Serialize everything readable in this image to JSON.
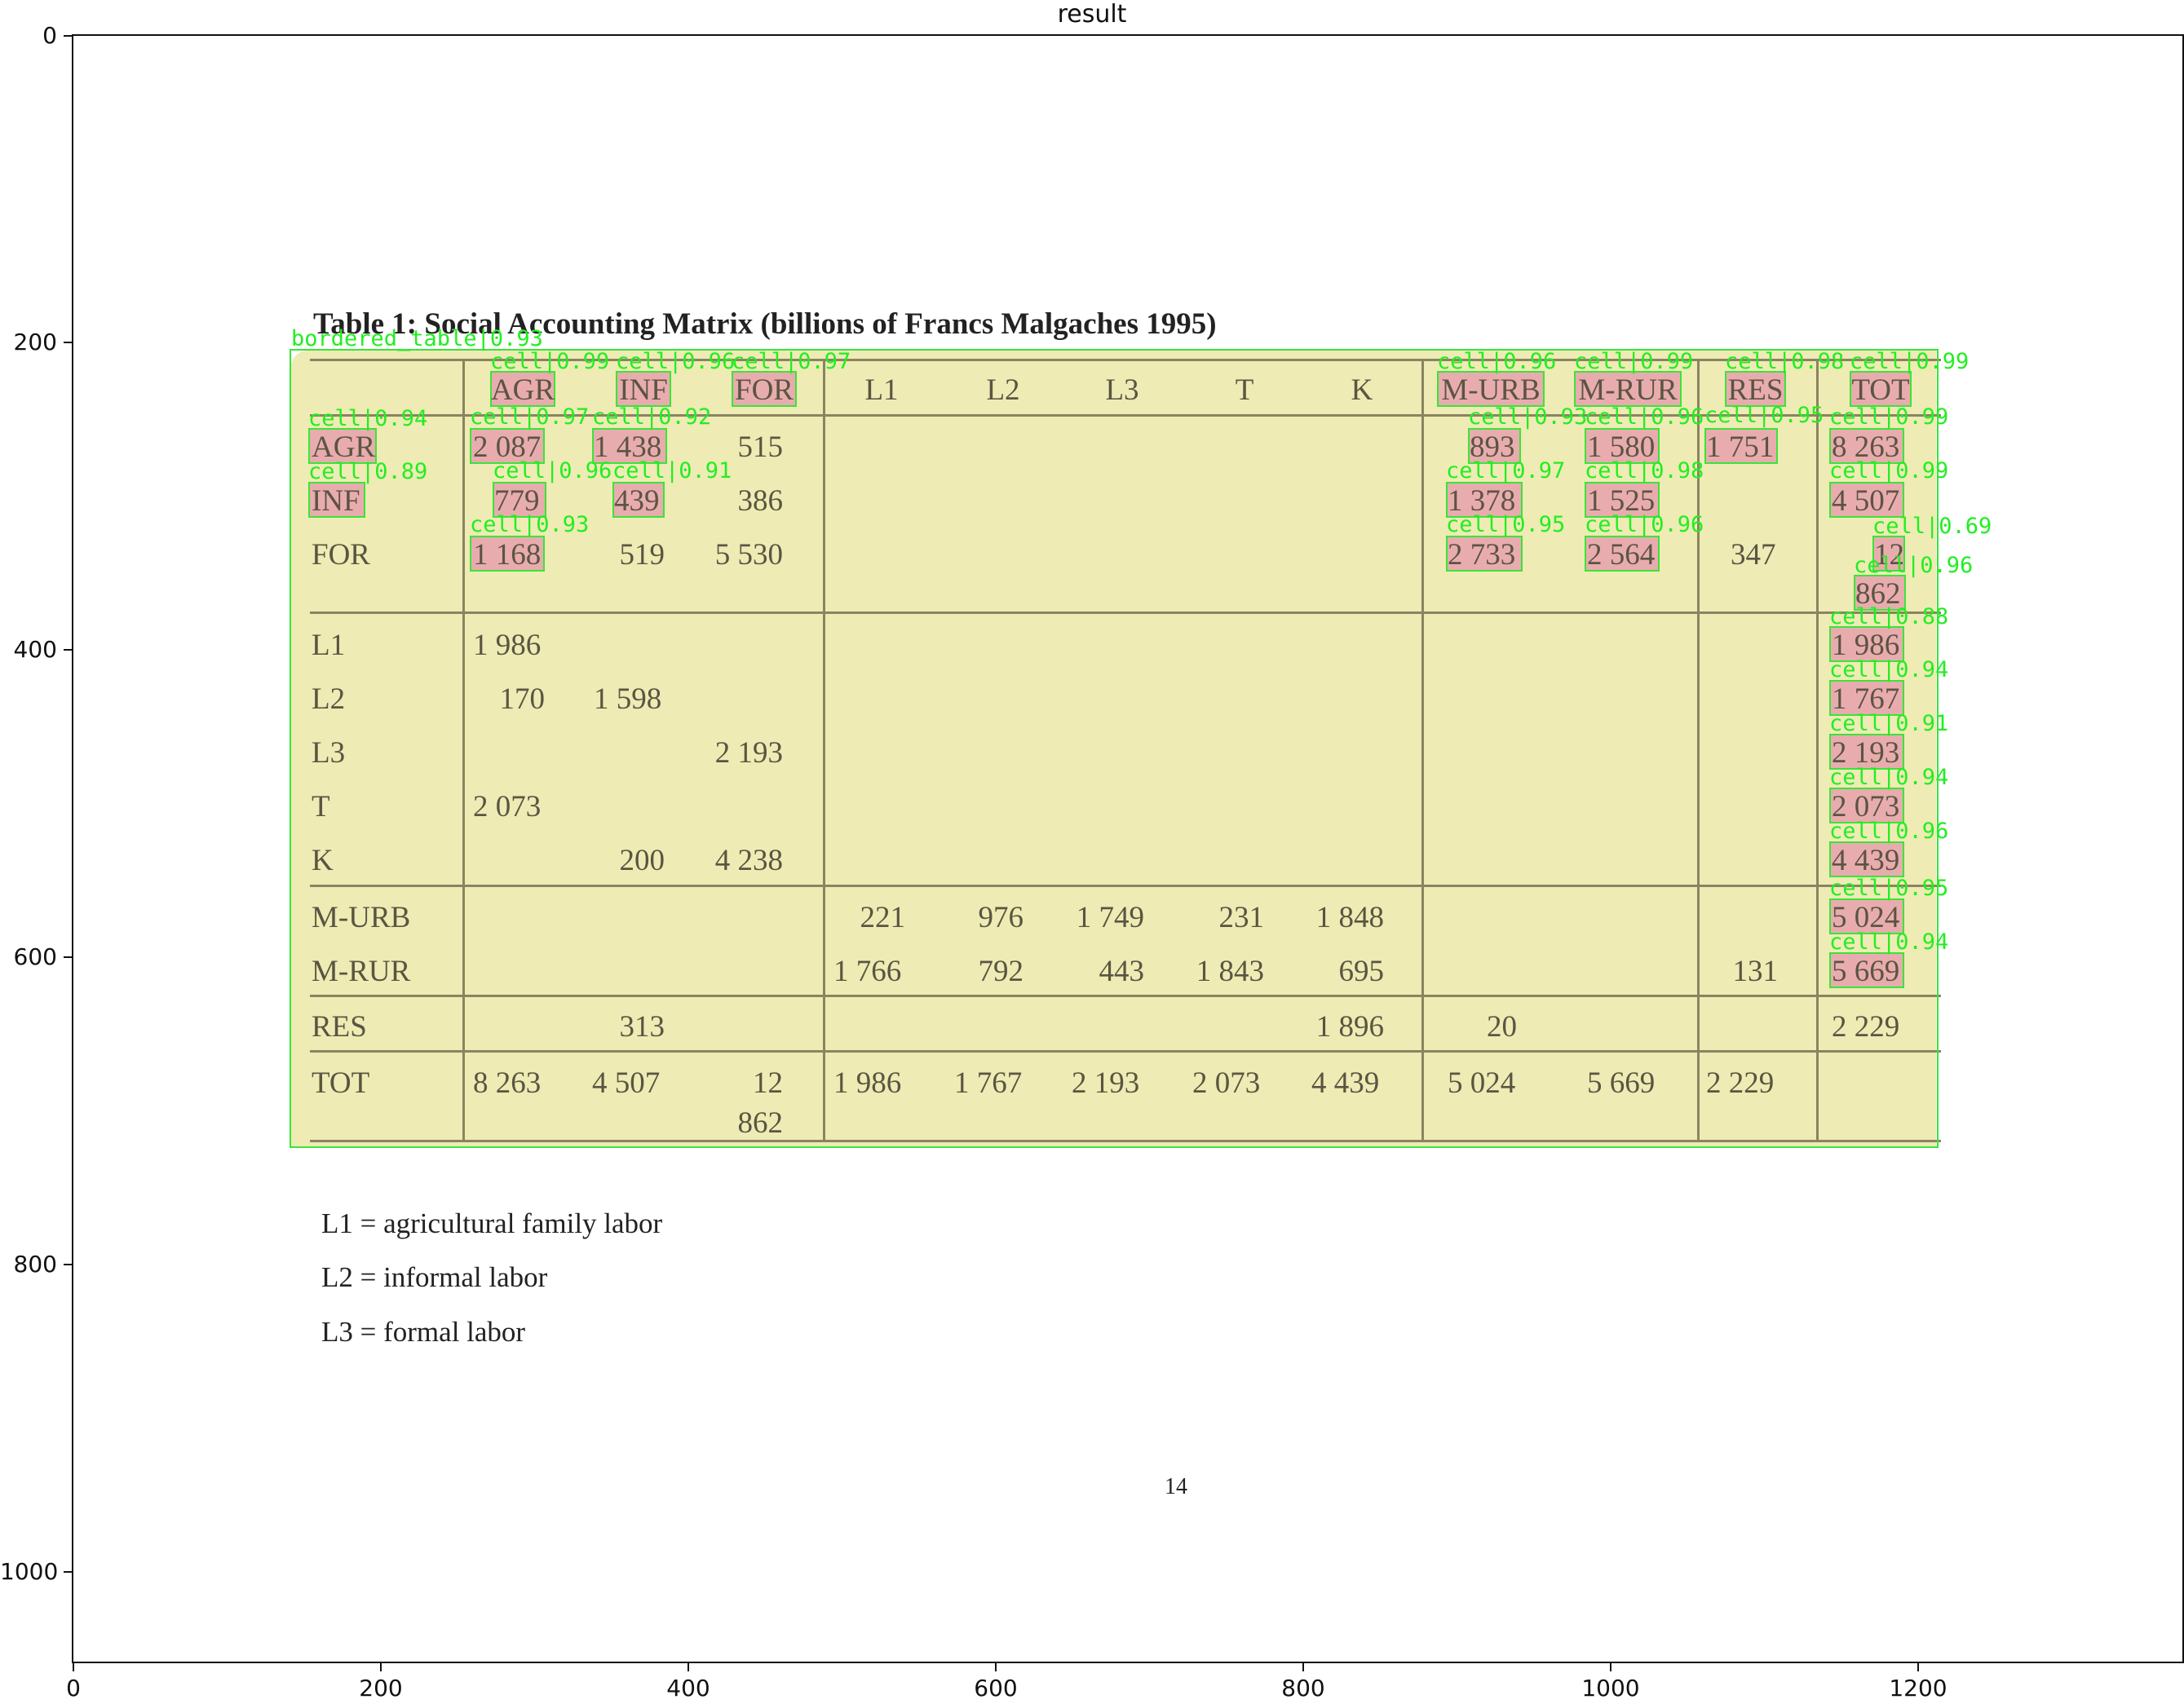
{
  "figure": {
    "title": "result",
    "y_ticks": [
      "0",
      "200",
      "400",
      "600",
      "800",
      "1000"
    ],
    "x_ticks": [
      "0",
      "200",
      "400",
      "600",
      "800",
      "1000",
      "1200"
    ]
  },
  "document": {
    "title": "Table 1: Social Accounting Matrix (billions of Francs Malgaches 1995)",
    "columns": [
      "AGR",
      "INF",
      "FOR",
      "L1",
      "L2",
      "L3",
      "T",
      "K",
      "M-URB",
      "M-RUR",
      "RES",
      "TOT"
    ],
    "rows": [
      {
        "label": "AGR",
        "cells": {
          "AGR": "2 087",
          "INF": "1 438",
          "FOR": "515",
          "M-URB": "893",
          "M-RUR": "1 580",
          "RES": "1 751",
          "TOT": "8 263"
        }
      },
      {
        "label": "INF",
        "cells": {
          "AGR": "779",
          "INF": "439",
          "FOR": "386",
          "M-URB": "1 378",
          "M-RUR": "1 525",
          "TOT": "4 507"
        }
      },
      {
        "label": "FOR",
        "cells": {
          "AGR": "1 168",
          "INF": "519",
          "FOR": "5 530",
          "M-URB": "2 733",
          "M-RUR": "2 564",
          "RES": "347",
          "TOT_a": "12",
          "TOT_b": "862"
        }
      },
      {
        "label": "L1",
        "cells": {
          "AGR": "1 986",
          "TOT": "1 986"
        }
      },
      {
        "label": "L2",
        "cells": {
          "AGR": "170",
          "INF": "1 598",
          "TOT": "1 767"
        }
      },
      {
        "label": "L3",
        "cells": {
          "FOR": "2 193",
          "TOT": "2 193"
        }
      },
      {
        "label": "T",
        "cells": {
          "AGR": "2 073",
          "TOT": "2 073"
        }
      },
      {
        "label": "K",
        "cells": {
          "INF": "200",
          "FOR": "4 238",
          "TOT": "4 439"
        }
      },
      {
        "label": "M-URB",
        "cells": {
          "L1": "221",
          "L2": "976",
          "L3": "1 749",
          "T": "231",
          "K": "1 848",
          "TOT": "5 024"
        }
      },
      {
        "label": "M-RUR",
        "cells": {
          "L1": "1 766",
          "L2": "792",
          "L3": "443",
          "T": "1 843",
          "K": "695",
          "RES": "131",
          "TOT": "5 669"
        }
      },
      {
        "label": "RES",
        "cells": {
          "INF": "313",
          "K": "1 896",
          "M-URB": "20",
          "TOT": "2 229"
        }
      },
      {
        "label": "TOT",
        "cells": {
          "AGR": "8 263",
          "INF": "4 507",
          "FOR_a": "12",
          "FOR_b": "862",
          "L1": "1 986",
          "L2": "1 767",
          "L3": "2 193",
          "T": "2 073",
          "K": "4 439",
          "M-URB": "5 024",
          "M-RUR": "5 669",
          "RES": "2 229"
        }
      }
    ],
    "legend": [
      "L1 = agricultural family labor",
      "L2 = informal labor",
      "L3 = formal labor"
    ],
    "page_number": "14"
  },
  "detections": {
    "table_label": "bordered_table|0.93",
    "cells": [
      {
        "id": "h-agr",
        "label": "cell|0.99"
      },
      {
        "id": "h-inf",
        "label": "cell|0.96"
      },
      {
        "id": "h-for",
        "label": "cell|0.97"
      },
      {
        "id": "h-murb",
        "label": "cell|0.96"
      },
      {
        "id": "h-mrur",
        "label": "cell|0.99"
      },
      {
        "id": "h-res",
        "label": "cell|0.98"
      },
      {
        "id": "h-tot",
        "label": "cell|0.99"
      },
      {
        "id": "r-agr",
        "label": "cell|0.94"
      },
      {
        "id": "agr-agr",
        "label": "cell|0.97"
      },
      {
        "id": "agr-inf",
        "label": "cell|0.92"
      },
      {
        "id": "agr-murb",
        "label": "cell|0.93"
      },
      {
        "id": "agr-mrur",
        "label": "cell|0.96"
      },
      {
        "id": "agr-res",
        "label": "cell|0.95"
      },
      {
        "id": "agr-tot",
        "label": "cell|0.99"
      },
      {
        "id": "r-inf",
        "label": "cell|0.89"
      },
      {
        "id": "inf-agr",
        "label": "cell|0.96"
      },
      {
        "id": "inf-inf",
        "label": "cell|0.91"
      },
      {
        "id": "inf-murb",
        "label": "cell|0.97"
      },
      {
        "id": "inf-mrur",
        "label": "cell|0.98"
      },
      {
        "id": "inf-tot",
        "label": "cell|0.99"
      },
      {
        "id": "for-agr",
        "label": "cell|0.93"
      },
      {
        "id": "for-murb",
        "label": "cell|0.95"
      },
      {
        "id": "for-mrur",
        "label": "cell|0.96"
      },
      {
        "id": "for-tot-a",
        "label": "cell|0.69"
      },
      {
        "id": "for-tot-b",
        "label": "cell|0.96"
      },
      {
        "id": "l1-tot",
        "label": "cell|0.88"
      },
      {
        "id": "l2-tot",
        "label": "cell|0.94"
      },
      {
        "id": "l3-tot",
        "label": "cell|0.91"
      },
      {
        "id": "t-tot",
        "label": "cell|0.94"
      },
      {
        "id": "k-tot",
        "label": "cell|0.96"
      },
      {
        "id": "murb-tot",
        "label": "cell|0.95"
      },
      {
        "id": "mrur-tot",
        "label": "cell|0.94"
      }
    ]
  }
}
